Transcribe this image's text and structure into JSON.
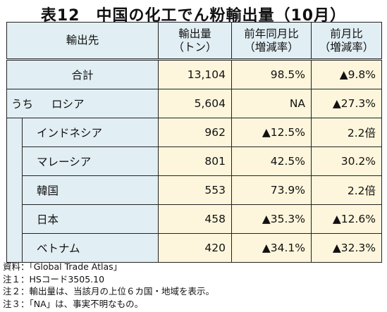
{
  "title": "表12　中国の化工でん粉輸出量（10月）",
  "headers": {
    "destination": "輸出先",
    "volume_line1": "輸出量",
    "volume_line2": "（トン）",
    "yoy_line1": "前年同月比",
    "yoy_line2": "（増減率）",
    "mom_line1": "前月比",
    "mom_line2": "（増減率）"
  },
  "total": {
    "label": "合計",
    "volume": "13,104",
    "yoy": "98.5%",
    "mom": "▲9.8%"
  },
  "uchi_label": "うち",
  "rows": [
    {
      "country": "ロシア",
      "volume": "5,604",
      "yoy": "NA",
      "mom": "▲27.3%"
    },
    {
      "country": "インドネシア",
      "volume": "962",
      "yoy": "▲12.5%",
      "mom": "2.2倍"
    },
    {
      "country": "マレーシア",
      "volume": "801",
      "yoy": "42.5%",
      "mom": "30.2%"
    },
    {
      "country": "韓国",
      "volume": "553",
      "yoy": "73.9%",
      "mom": "2.2倍"
    },
    {
      "country": "日本",
      "volume": "458",
      "yoy": "▲35.3%",
      "mom": "▲12.6%"
    },
    {
      "country": "ベトナム",
      "volume": "420",
      "yoy": "▲34.1%",
      "mom": "▲32.3%"
    }
  ],
  "notes": [
    "資料：「Global Trade Atlas」",
    "注１：HSコード3505.10",
    "注２：輸出量は、当該月の上位６カ国・地域を表示。",
    "注３：「NA」は、事実不明なもの。"
  ]
}
